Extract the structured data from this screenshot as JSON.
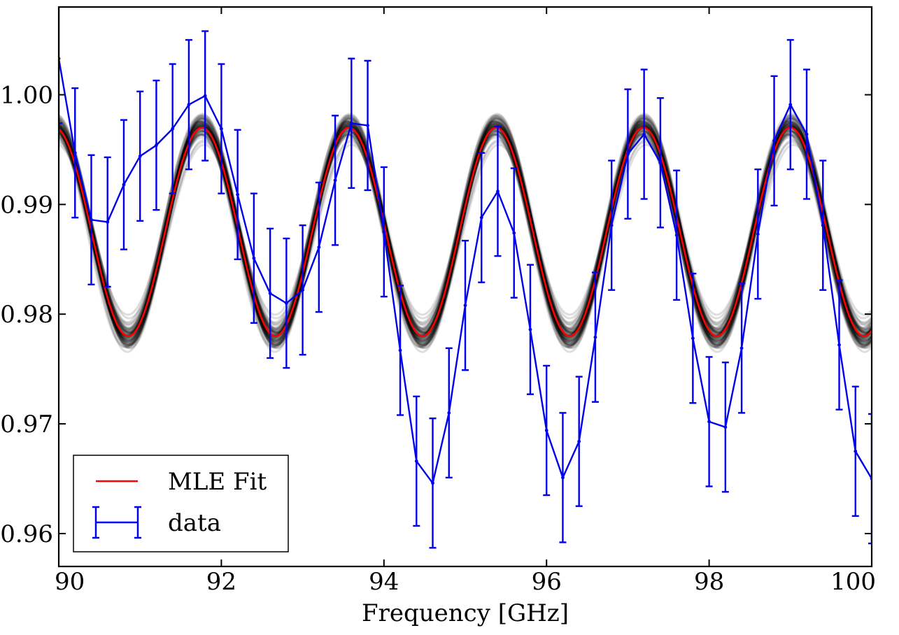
{
  "chart_data": {
    "type": "line",
    "title": "",
    "xlabel": "Frequency [GHz]",
    "ylabel": "",
    "xlim": [
      90,
      100
    ],
    "ylim": [
      0.957,
      1.008
    ],
    "xticks": [
      90,
      92,
      94,
      96,
      98,
      100
    ],
    "xtick_labels": [
      "90",
      "92",
      "94",
      "96",
      "98",
      "100"
    ],
    "yticks": [
      0.96,
      0.97,
      0.98,
      0.99,
      1.0
    ],
    "ytick_labels": [
      "0.96",
      "0.97",
      "0.98",
      "0.99",
      "1.00"
    ],
    "grid": false,
    "legend": {
      "placement": "lower-left",
      "entries": [
        "MLE Fit",
        "data"
      ]
    },
    "series": [
      {
        "name": "MLE Fit",
        "kind": "model",
        "color": "#ff0000",
        "model": {
          "offset": 0.9875,
          "amplitude": 0.0095,
          "period_ghz": 1.81,
          "peak_ghz": 91.76
        }
      },
      {
        "name": "data",
        "kind": "errorbar",
        "color": "#0000ee",
        "x": [
          90.0,
          90.2,
          90.4,
          90.6,
          90.8,
          91.0,
          91.2,
          91.4,
          91.6,
          91.8,
          92.0,
          92.2,
          92.4,
          92.6,
          92.8,
          93.0,
          93.2,
          93.4,
          93.6,
          93.8,
          94.0,
          94.2,
          94.4,
          94.6,
          94.8,
          95.0,
          95.2,
          95.4,
          95.6,
          95.8,
          96.0,
          96.2,
          96.4,
          96.6,
          96.8,
          97.0,
          97.2,
          97.4,
          97.6,
          97.8,
          98.0,
          98.2,
          98.4,
          98.6,
          98.8,
          99.0,
          99.2,
          99.4,
          99.6,
          99.8,
          100.0
        ],
        "y": [
          1.0033,
          0.9947,
          0.9886,
          0.9884,
          0.9918,
          0.9944,
          0.9954,
          0.9969,
          0.9991,
          0.9999,
          0.9969,
          0.9909,
          0.9851,
          0.9819,
          0.981,
          0.9822,
          0.9861,
          0.9922,
          0.9974,
          0.9972,
          0.9875,
          0.9767,
          0.9666,
          0.9646,
          0.971,
          0.9808,
          0.9888,
          0.9912,
          0.9874,
          0.9786,
          0.9694,
          0.9651,
          0.9684,
          0.9779,
          0.9881,
          0.9946,
          0.9964,
          0.9938,
          0.9872,
          0.9778,
          0.9702,
          0.9697,
          0.9769,
          0.9873,
          0.9958,
          0.9991,
          0.9964,
          0.9881,
          0.9772,
          0.9675,
          0.965
        ],
        "yerr": 0.0059
      }
    ]
  }
}
